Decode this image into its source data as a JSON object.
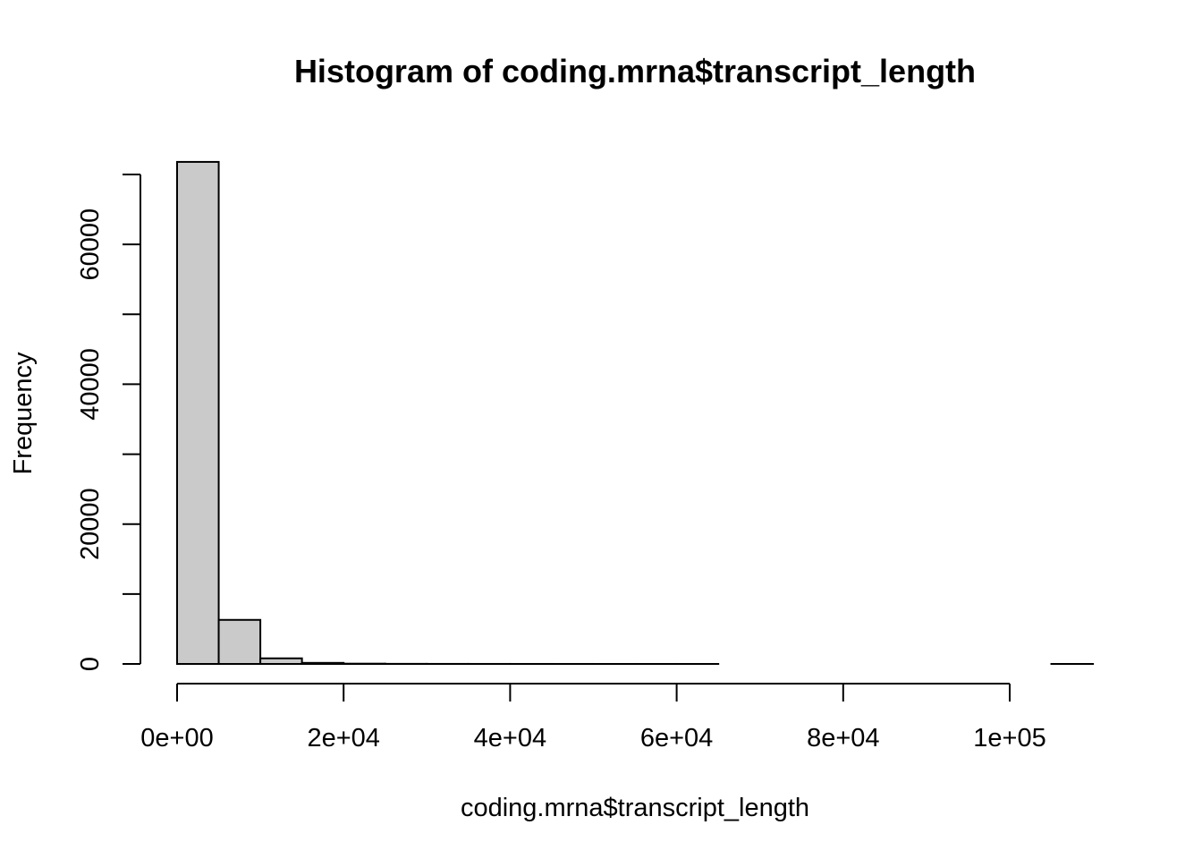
{
  "chart_data": {
    "type": "bar",
    "title": "Histogram of coding.mrna$transcript_length",
    "xlabel": "coding.mrna$transcript_length",
    "ylabel": "Frequency",
    "bin_edges": [
      0,
      5000,
      10000,
      15000,
      20000,
      25000,
      30000,
      35000,
      40000,
      45000,
      50000,
      55000,
      60000,
      65000,
      70000,
      75000,
      80000,
      85000,
      90000,
      95000,
      100000,
      105000,
      110000
    ],
    "values": [
      71800,
      6300,
      800,
      150,
      40,
      15,
      8,
      5,
      3,
      2,
      1,
      1,
      1,
      0,
      0,
      0,
      0,
      0,
      0,
      0,
      0,
      1
    ],
    "xlim": [
      0,
      110000
    ],
    "ylim": [
      0,
      70000
    ],
    "x_ticks": [
      0,
      20000,
      40000,
      60000,
      80000,
      100000
    ],
    "x_tick_labels": [
      "0e+00",
      "2e+04",
      "4e+04",
      "6e+04",
      "8e+04",
      "1e+05"
    ],
    "y_ticks": [
      0,
      10000,
      20000,
      30000,
      40000,
      50000,
      60000,
      70000
    ],
    "y_tick_labels": [
      "0",
      "",
      "20000",
      "",
      "40000",
      "",
      "60000",
      ""
    ],
    "grid": false,
    "bar_color": "#cacaca",
    "edge_color": "#000000"
  }
}
